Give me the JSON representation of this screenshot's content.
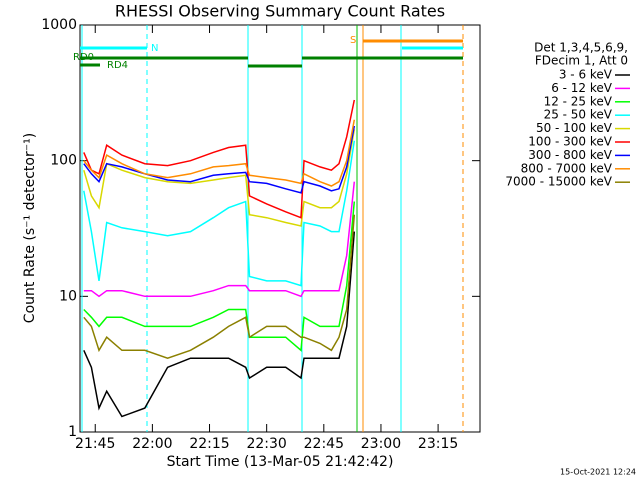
{
  "chart_data": {
    "type": "line",
    "title": "RHESSI Observing Summary Count Rates",
    "x_label": "Start Time (13-Mar-05 21:42:42)",
    "y_label": "Count Rate (s⁻¹ detector⁻¹)",
    "legend_title": [
      "Det 1,3,4,5,6,9,",
      "FDecim 1, Att 0"
    ],
    "flags": [
      "N",
      "S",
      "RD0",
      "RD4"
    ],
    "footer": "15-Oct-2021 12:24",
    "log_y": true,
    "xlim": [
      1301,
      1406
    ],
    "xticks": [
      {
        "value": 1305,
        "label": "21:45"
      },
      {
        "value": 1320,
        "label": "22:00"
      },
      {
        "value": 1335,
        "label": "22:15"
      },
      {
        "value": 1350,
        "label": "22:30"
      },
      {
        "value": 1365,
        "label": "22:45"
      },
      {
        "value": 1380,
        "label": "23:00"
      },
      {
        "value": 1395,
        "label": "23:15"
      }
    ],
    "ylim": [
      1,
      1000
    ],
    "yticks": [
      1,
      10,
      100,
      1000
    ],
    "x": [
      1302,
      1304,
      1306,
      1308,
      1312,
      1318,
      1324,
      1330,
      1336,
      1340,
      1344.5,
      1345.5,
      1350,
      1355,
      1359,
      1359.8,
      1364,
      1367,
      1369,
      1371,
      1373
    ],
    "series": [
      {
        "name": "3 - 6 keV",
        "color": "#000000",
        "values": [
          4,
          3,
          1.5,
          2,
          1.3,
          1.5,
          3,
          3.5,
          3.5,
          3.5,
          3,
          2.5,
          3,
          3,
          2.5,
          3.5,
          3.5,
          3.5,
          3.5,
          6,
          30
        ]
      },
      {
        "name": "6 - 12 keV",
        "color": "#ff00ff",
        "values": [
          11,
          11,
          10,
          11,
          11,
          10,
          10,
          10,
          11,
          12,
          12,
          11,
          11,
          11,
          10,
          11,
          11,
          11,
          11,
          20,
          70
        ]
      },
      {
        "name": "12 - 25 keV",
        "color": "#00ff00",
        "values": [
          8,
          7,
          6,
          7,
          7,
          6,
          6,
          6,
          7,
          8,
          8,
          5,
          5,
          5,
          4,
          7,
          6,
          6,
          6,
          12,
          50
        ]
      },
      {
        "name": "25 - 50 keV",
        "color": "#00ffff",
        "values": [
          60,
          30,
          13,
          35,
          32,
          30,
          28,
          30,
          38,
          45,
          50,
          14,
          13,
          13,
          12,
          35,
          33,
          30,
          30,
          60,
          140
        ]
      },
      {
        "name": "50 - 100 keV",
        "color": "#d8d800",
        "values": [
          85,
          55,
          45,
          95,
          85,
          75,
          70,
          68,
          72,
          75,
          78,
          40,
          38,
          35,
          33,
          50,
          45,
          45,
          50,
          80,
          170
        ]
      },
      {
        "name": "100 - 300 keV",
        "color": "#ff0000",
        "values": [
          115,
          85,
          80,
          130,
          110,
          95,
          92,
          100,
          115,
          125,
          130,
          55,
          48,
          42,
          38,
          100,
          90,
          85,
          95,
          150,
          280
        ]
      },
      {
        "name": "300 - 800 keV",
        "color": "#0000ff",
        "values": [
          95,
          80,
          70,
          95,
          90,
          80,
          72,
          70,
          78,
          80,
          82,
          70,
          68,
          62,
          58,
          70,
          65,
          60,
          62,
          90,
          180
        ]
      },
      {
        "name": "800 - 7000 keV",
        "color": "#ff8c00",
        "values": [
          100,
          85,
          75,
          110,
          95,
          80,
          75,
          80,
          90,
          92,
          95,
          78,
          75,
          72,
          68,
          80,
          70,
          65,
          70,
          100,
          200
        ]
      },
      {
        "name": "7000 - 15000 keV",
        "color": "#8b8000",
        "values": [
          7,
          6,
          4,
          5,
          4,
          4,
          3.5,
          4,
          5,
          6,
          7,
          5,
          6,
          6,
          5,
          5,
          4.5,
          4,
          5,
          8,
          40
        ]
      }
    ]
  }
}
